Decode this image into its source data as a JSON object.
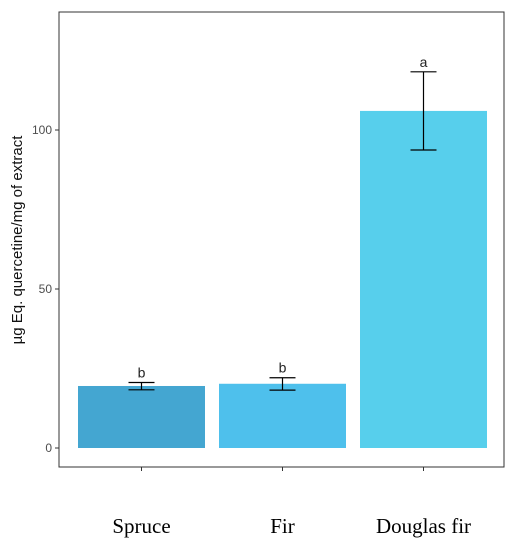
{
  "chart_data": {
    "type": "bar",
    "title": "",
    "xlabel": "",
    "ylabel": "µg Eq. quercetine/mg of extract",
    "ylim": [
      0,
      135
    ],
    "yticks": [
      0,
      50,
      100
    ],
    "grid": false,
    "categories": [
      "Spruce",
      "Fir",
      "Douglas fir"
    ],
    "values": [
      19.5,
      20.2,
      106
    ],
    "error_low": [
      18.3,
      18.2,
      93.7
    ],
    "error_high": [
      20.6,
      22.1,
      118.3
    ],
    "significance_labels": [
      "b",
      "b",
      "a"
    ],
    "colors": [
      "#44a6d1",
      "#4ec0ec",
      "#57cfec"
    ],
    "error_color": "#000000",
    "panel_border_color": "#333333"
  }
}
